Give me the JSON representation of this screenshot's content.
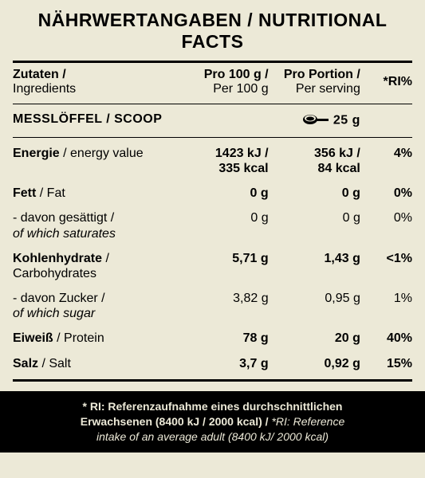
{
  "colors": {
    "bg": "#ece9d7",
    "fg": "#000000",
    "footer_bg": "#000000",
    "footer_fg": "#ece9d7"
  },
  "title": "NÄHRWERTANGABEN / NUTRITIONAL FACTS",
  "header": {
    "col1_a": "Zutaten /",
    "col1_b": "Ingredients",
    "col2_a": "Pro 100 g /",
    "col2_b": "Per 100 g",
    "col3_a": "Pro Portion /",
    "col3_b": "Per serving",
    "col4": "*RI%"
  },
  "scoop": {
    "label": "MESSLÖFFEL / SCOOP",
    "amount": "25 g"
  },
  "rows": [
    {
      "name_b": "Energie",
      "name_sep": " / ",
      "name_r": "energy value",
      "per100_a": "1423 kJ /",
      "per100_b": "335 kcal",
      "serv_a": "356 kJ /",
      "serv_b": "84 kcal",
      "ri": "4%",
      "bold": true,
      "italic_sub": false
    },
    {
      "name_b": "Fett",
      "name_sep": " / ",
      "name_r": "Fat",
      "per100": "0 g",
      "serv": "0 g",
      "ri": "0%",
      "bold": true
    },
    {
      "name_b": "- davon gesättigt /",
      "name_r": "of which saturates",
      "per100": "0 g",
      "serv": "0 g",
      "ri": "0%",
      "bold": false,
      "italic_sub": true
    },
    {
      "name_b": "Kohlenhydrate",
      "name_sep": " / ",
      "name_r": "Carbohydrates",
      "per100": "5,71 g",
      "serv": "1,43  g",
      "ri": "<1%",
      "bold": true
    },
    {
      "name_b": "- davon Zucker /",
      "name_r": "of which sugar",
      "per100": "3,82 g",
      "serv": "0,95 g",
      "ri": "1%",
      "bold": false,
      "italic_sub": true
    },
    {
      "name_b": "Eiweiß",
      "name_sep": " / ",
      "name_r": "Protein",
      "per100": "78 g",
      "serv": "20 g",
      "ri": "40%",
      "bold": true
    },
    {
      "name_b": "Salz",
      "name_sep": " / ",
      "name_r": "Salt",
      "per100": "3,7 g",
      "serv": "0,92 g",
      "ri": "15%",
      "bold": true
    }
  ],
  "footer": {
    "bold_a": "* RI: Referenzaufnahme eines durchschnittlichen",
    "bold_b": "Erwachsenen (8400 kJ / 2000 kcal) / ",
    "ital_a": "*RI: Reference",
    "ital_b": "intake of an average adult (8400 kJ/ 2000 kcal)"
  }
}
